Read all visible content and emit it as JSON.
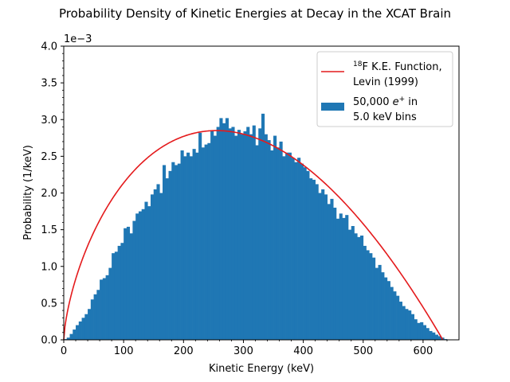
{
  "chart_data": {
    "type": "bar",
    "title": "Probability Density of Kinetic Energies at Decay in the XCAT Brain",
    "xlabel": "Kinetic Energy (keV)",
    "ylabel": "Probability (1/keV)",
    "y_multiplier_label": "1e−3",
    "xlim": [
      0,
      660
    ],
    "ylim": [
      0,
      4.0
    ],
    "x_ticks": [
      "0",
      "100",
      "200",
      "300",
      "400",
      "500",
      "600"
    ],
    "y_ticks": [
      "0.0",
      "0.5",
      "1.0",
      "1.5",
      "2.0",
      "2.5",
      "3.0",
      "3.5",
      "4.0"
    ],
    "legend_position": "top-right",
    "legend": {
      "line_label_sup": "18",
      "line_label_main": "F K.E. Function,",
      "line_label_line2": "Levin (1999)",
      "hist_label_prefix": "50,000 ",
      "hist_label_symbol": "e",
      "hist_label_sup": "+",
      "hist_label_suffix": " in",
      "hist_label_line2": "5.0 keV bins"
    },
    "colors": {
      "histogram": "#1f77b4",
      "curve": "#e41a1c"
    },
    "bin_width_keV": 5.0,
    "histogram_bin_start_keV": 0,
    "histogram_values": [
      0.01,
      0.03,
      0.08,
      0.14,
      0.2,
      0.25,
      0.3,
      0.35,
      0.42,
      0.55,
      0.62,
      0.68,
      0.82,
      0.84,
      0.88,
      0.98,
      1.18,
      1.2,
      1.28,
      1.32,
      1.52,
      1.54,
      1.45,
      1.62,
      1.72,
      1.75,
      1.78,
      1.88,
      1.82,
      1.98,
      2.05,
      2.12,
      2.0,
      2.38,
      2.2,
      2.3,
      2.42,
      2.38,
      2.4,
      2.58,
      2.5,
      2.55,
      2.5,
      2.6,
      2.55,
      2.82,
      2.62,
      2.66,
      2.68,
      2.85,
      2.78,
      2.9,
      3.02,
      2.95,
      3.02,
      2.88,
      2.9,
      2.78,
      2.86,
      2.8,
      2.84,
      2.9,
      2.8,
      2.92,
      2.65,
      2.88,
      3.08,
      2.8,
      2.72,
      2.58,
      2.78,
      2.62,
      2.7,
      2.5,
      2.55,
      2.55,
      2.48,
      2.42,
      2.48,
      2.4,
      2.35,
      2.3,
      2.2,
      2.18,
      2.12,
      2.0,
      2.05,
      1.98,
      1.85,
      1.92,
      1.8,
      1.65,
      1.72,
      1.66,
      1.7,
      1.5,
      1.55,
      1.45,
      1.4,
      1.42,
      1.28,
      1.22,
      1.18,
      1.12,
      0.98,
      1.02,
      0.92,
      0.85,
      0.8,
      0.72,
      0.66,
      0.6,
      0.52,
      0.46,
      0.42,
      0.4,
      0.35,
      0.28,
      0.23,
      0.24,
      0.2,
      0.16,
      0.12,
      0.1,
      0.07,
      0.05,
      0.03,
      0.01
    ],
    "curve_endpoint_keV": 633,
    "curve_peak_keV": 255,
    "curve_peak_value": 2.85
  }
}
